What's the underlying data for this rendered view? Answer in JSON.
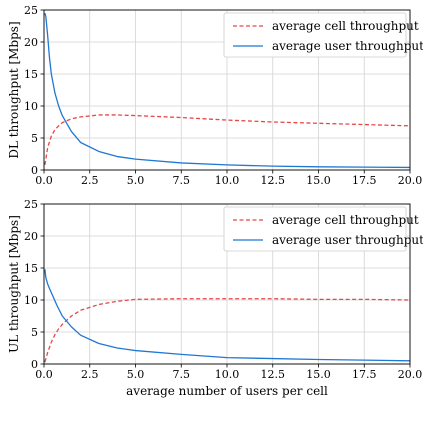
{
  "chart_data": [
    {
      "type": "line",
      "title": "",
      "xlabel": "",
      "ylabel": "DL throughput [Mbps]",
      "xlim": [
        0,
        20
      ],
      "ylim": [
        0,
        25
      ],
      "xticks": [
        "0.0",
        "2.5",
        "5.0",
        "7.5",
        "10.0",
        "12.5",
        "15.0",
        "17.5",
        "20.0"
      ],
      "yticks": [
        "0",
        "5",
        "10",
        "15",
        "20",
        "25"
      ],
      "grid": true,
      "legend_position": "top-right",
      "series": [
        {
          "name": "average cell throughput",
          "color": "#e8474a",
          "style": "dashed",
          "x": [
            0.05,
            0.2,
            0.4,
            0.6,
            0.8,
            1.0,
            1.5,
            2.0,
            3.0,
            4.0,
            5.0,
            7.5,
            10.0,
            12.5,
            15.0,
            17.5,
            20.0
          ],
          "y": [
            0.8,
            3.5,
            5.3,
            6.3,
            6.9,
            7.4,
            8.0,
            8.3,
            8.6,
            8.6,
            8.5,
            8.2,
            7.8,
            7.5,
            7.3,
            7.1,
            6.9
          ]
        },
        {
          "name": "average user throughput",
          "color": "#1f77d4",
          "style": "solid",
          "x": [
            0.05,
            0.1,
            0.2,
            0.3,
            0.4,
            0.6,
            0.8,
            1.0,
            1.5,
            2.0,
            3.0,
            4.0,
            5.0,
            7.5,
            10.0,
            12.5,
            15.0,
            17.5,
            20.0
          ],
          "y": [
            24.5,
            24.0,
            21.0,
            17.5,
            15.0,
            12.0,
            10.0,
            8.5,
            6.0,
            4.3,
            2.9,
            2.1,
            1.7,
            1.1,
            0.8,
            0.6,
            0.5,
            0.45,
            0.4
          ]
        }
      ]
    },
    {
      "type": "line",
      "title": "",
      "xlabel": "average number of users per cell",
      "ylabel": "UL throughput [Mbps]",
      "xlim": [
        0,
        20
      ],
      "ylim": [
        0,
        25
      ],
      "xticks": [
        "0.0",
        "2.5",
        "5.0",
        "7.5",
        "10.0",
        "12.5",
        "15.0",
        "17.5",
        "20.0"
      ],
      "yticks": [
        "0",
        "5",
        "10",
        "15",
        "20",
        "25"
      ],
      "grid": true,
      "legend_position": "top-right",
      "series": [
        {
          "name": "average cell throughput",
          "color": "#e8474a",
          "style": "dashed",
          "x": [
            0.05,
            0.2,
            0.4,
            0.6,
            0.8,
            1.0,
            1.5,
            2.0,
            3.0,
            4.0,
            5.0,
            7.5,
            10.0,
            12.5,
            15.0,
            17.5,
            20.0
          ],
          "y": [
            0.3,
            1.8,
            3.4,
            4.6,
            5.5,
            6.2,
            7.5,
            8.4,
            9.3,
            9.8,
            10.1,
            10.2,
            10.2,
            10.2,
            10.1,
            10.1,
            10.0
          ]
        },
        {
          "name": "average user throughput",
          "color": "#1f77d4",
          "style": "solid",
          "x": [
            0.05,
            0.1,
            0.2,
            0.3,
            0.5,
            0.7,
            1.0,
            1.5,
            2.0,
            3.0,
            4.0,
            5.0,
            7.5,
            10.0,
            12.5,
            15.0,
            17.5,
            20.0
          ],
          "y": [
            14.8,
            13.5,
            12.5,
            11.8,
            10.5,
            9.2,
            7.5,
            5.8,
            4.5,
            3.2,
            2.5,
            2.1,
            1.5,
            1.0,
            0.85,
            0.7,
            0.6,
            0.5
          ]
        }
      ]
    }
  ]
}
